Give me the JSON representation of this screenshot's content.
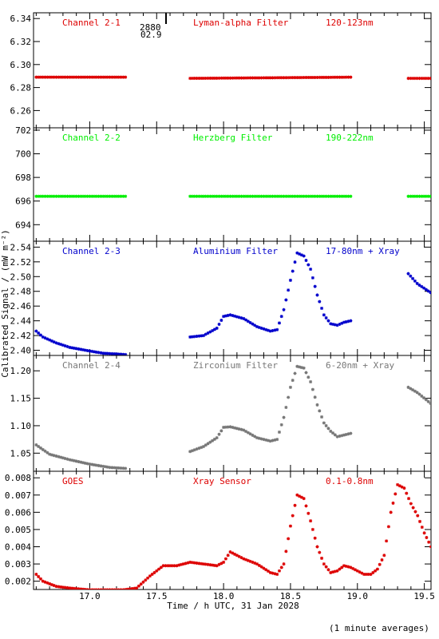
{
  "annotation": {
    "line1": "2880",
    "line2": "02.9"
  },
  "footer": {
    "note": "(1 minute averages)"
  },
  "chart_data": {
    "type": "scatter",
    "xlabel": "Time / h UTC, 31 Jan 2028",
    "ylabel": "Calibrated Signal / (mW m⁻²)",
    "xlim": [
      16.58,
      19.55
    ],
    "xticks": [
      17.0,
      17.5,
      18.0,
      18.5,
      19.0,
      19.5
    ],
    "xtick_labels": [
      "17.0",
      "17.5",
      "18.0",
      "18.5",
      "19.0",
      "19.5"
    ],
    "gaps": [
      [
        17.28,
        17.75
      ],
      [
        18.95,
        19.38
      ]
    ],
    "panels": [
      {
        "label": "Channel 2-1",
        "filter": "Lyman-alpha Filter",
        "band": "120-123nm",
        "color": "#dd0000",
        "ylim": [
          6.245,
          6.345
        ],
        "yticks": [
          6.26,
          6.28,
          6.3,
          6.32,
          6.34
        ],
        "ytick_labels": [
          "6.26",
          "6.28",
          "6.30",
          "6.32",
          "6.34"
        ],
        "segments": [
          {
            "x": [
              16.6,
              17.28
            ],
            "y": [
              6.289,
              6.289
            ]
          },
          {
            "x": [
              17.75,
              18.95
            ],
            "y": [
              6.288,
              6.289
            ]
          },
          {
            "x": [
              19.38,
              19.55
            ],
            "y": [
              6.288,
              6.288
            ]
          }
        ]
      },
      {
        "label": "Channel 2-2",
        "filter": "Herzberg Filter",
        "band": "190-222nm",
        "color": "#00ee00",
        "ylim": [
          692.6,
          702.2
        ],
        "yticks": [
          694,
          696,
          698,
          700,
          702
        ],
        "ytick_labels": [
          "694",
          "696",
          "698",
          "700",
          "702"
        ],
        "segments": [
          {
            "x": [
              16.6,
              17.28
            ],
            "y": [
              696.4,
              696.4
            ]
          },
          {
            "x": [
              17.75,
              18.95
            ],
            "y": [
              696.4,
              696.4
            ]
          },
          {
            "x": [
              19.38,
              19.55
            ],
            "y": [
              696.4,
              696.4
            ]
          }
        ]
      },
      {
        "label": "Channel 2-3",
        "filter": "Aluminium Filter",
        "band": "17-80nm + Xray",
        "color": "#0000cc",
        "ylim": [
          2.393,
          2.548
        ],
        "yticks": [
          2.4,
          2.42,
          2.44,
          2.46,
          2.48,
          2.5,
          2.52,
          2.54
        ],
        "ytick_labels": [
          "2.40",
          "2.42",
          "2.44",
          "2.46",
          "2.48",
          "2.50",
          "2.52",
          "2.54"
        ],
        "segments": [
          {
            "x": [
              16.6,
              16.65,
              16.75,
              16.85,
              17.0,
              17.1,
              17.2,
              17.28
            ],
            "y": [
              2.426,
              2.418,
              2.41,
              2.404,
              2.399,
              2.396,
              2.395,
              2.394
            ]
          },
          {
            "x": [
              17.75,
              17.85,
              17.95,
              18.0,
              18.05,
              18.15,
              18.25,
              18.35,
              18.4,
              18.45,
              18.5,
              18.55,
              18.6,
              18.65,
              18.7,
              18.75,
              18.8,
              18.85,
              18.9,
              18.95
            ],
            "y": [
              2.418,
              2.42,
              2.43,
              2.446,
              2.448,
              2.443,
              2.432,
              2.426,
              2.428,
              2.455,
              2.495,
              2.532,
              2.528,
              2.51,
              2.475,
              2.448,
              2.436,
              2.434,
              2.438,
              2.44
            ]
          },
          {
            "x": [
              19.38,
              19.45,
              19.55
            ],
            "y": [
              2.504,
              2.49,
              2.478
            ]
          }
        ]
      },
      {
        "label": "Channel 2-4",
        "filter": "Zirconium Filter",
        "band": "6-20nm + Xray",
        "color": "#777777",
        "ylim": [
          1.017,
          1.228
        ],
        "yticks": [
          1.05,
          1.1,
          1.15,
          1.2
        ],
        "ytick_labels": [
          "1.05",
          "1.10",
          "1.15",
          "1.20"
        ],
        "segments": [
          {
            "x": [
              16.6,
              16.7,
              16.85,
              17.0,
              17.15,
              17.28
            ],
            "y": [
              1.065,
              1.048,
              1.038,
              1.03,
              1.024,
              1.022
            ]
          },
          {
            "x": [
              17.75,
              17.85,
              17.95,
              18.0,
              18.05,
              18.15,
              18.25,
              18.35,
              18.4,
              18.45,
              18.5,
              18.55,
              18.6,
              18.65,
              18.7,
              18.75,
              18.8,
              18.85,
              18.9,
              18.95
            ],
            "y": [
              1.053,
              1.062,
              1.078,
              1.097,
              1.098,
              1.092,
              1.078,
              1.072,
              1.075,
              1.115,
              1.17,
              1.208,
              1.205,
              1.18,
              1.138,
              1.105,
              1.09,
              1.08,
              1.083,
              1.086
            ]
          },
          {
            "x": [
              19.38,
              19.45,
              19.55
            ],
            "y": [
              1.17,
              1.16,
              1.14
            ]
          }
        ]
      },
      {
        "label": "GOES",
        "filter": "Xray Sensor",
        "band": "0.1-0.8nm",
        "color": "#dd0000",
        "ylim": [
          0.00152,
          0.00838
        ],
        "yticks": [
          0.002,
          0.003,
          0.004,
          0.005,
          0.006,
          0.007,
          0.008
        ],
        "ytick_labels": [
          "0.002",
          "0.003",
          "0.004",
          "0.005",
          "0.006",
          "0.007",
          "0.008"
        ],
        "segments": [
          {
            "x": [
              16.6,
              16.65,
              16.75,
              16.85,
              17.0,
              17.1,
              17.25,
              17.35,
              17.45,
              17.55,
              17.65,
              17.75,
              17.85,
              17.95,
              18.0,
              18.05,
              18.15,
              18.25,
              18.35,
              18.4,
              18.45,
              18.5,
              18.55,
              18.6,
              18.65,
              18.7,
              18.75,
              18.8,
              18.85,
              18.9,
              18.95,
              19.0,
              19.05,
              19.1,
              19.15,
              19.2,
              19.25,
              19.3,
              19.35,
              19.4,
              19.45,
              19.5,
              19.55
            ],
            "y": [
              0.0024,
              0.002,
              0.0017,
              0.0016,
              0.0015,
              0.0015,
              0.0015,
              0.0016,
              0.0023,
              0.0029,
              0.0029,
              0.0031,
              0.003,
              0.0029,
              0.0031,
              0.0037,
              0.0033,
              0.003,
              0.0025,
              0.0024,
              0.003,
              0.0052,
              0.007,
              0.0068,
              0.0055,
              0.004,
              0.003,
              0.0025,
              0.0026,
              0.0029,
              0.0028,
              0.0026,
              0.0024,
              0.0024,
              0.0027,
              0.0035,
              0.006,
              0.0076,
              0.0074,
              0.0065,
              0.0058,
              0.0048,
              0.004
            ]
          }
        ]
      }
    ]
  }
}
